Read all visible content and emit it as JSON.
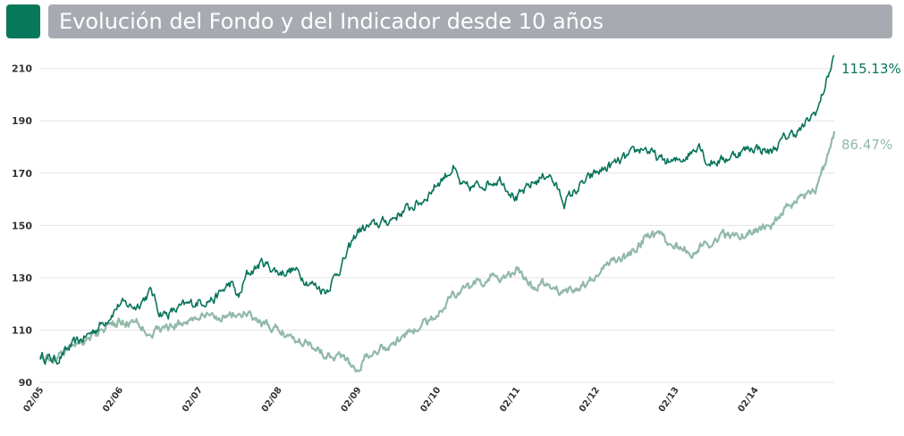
{
  "header": {
    "title": "Evolución del Fondo y del Indicador desde 10 años"
  },
  "colors": {
    "accent": "#07785a",
    "header_bar": "#a7abb1",
    "fund": "#07735a",
    "index": "#91b9a8",
    "grid": "#e4e4e4"
  },
  "chart_data": {
    "type": "line",
    "title": "Evolución del Fondo y del Indicador desde 10 años",
    "xlabel": "",
    "ylabel": "",
    "ylim": [
      90,
      215
    ],
    "y_ticks": [
      90,
      110,
      130,
      150,
      170,
      190,
      210
    ],
    "x_ticks": [
      "02/05",
      "02/06",
      "02/07",
      "02/08",
      "02/09",
      "02/10",
      "02/11",
      "02/12",
      "02/13",
      "02/14"
    ],
    "grid": true,
    "x_range": [
      2005.0,
      2015.0
    ],
    "series": [
      {
        "key": "fund",
        "end_label": "115.13%",
        "x": [
          2005.0,
          2005.2,
          2005.4,
          2005.6,
          2005.8,
          2006.0,
          2006.2,
          2006.4,
          2006.5,
          2006.6,
          2006.8,
          2007.0,
          2007.2,
          2007.4,
          2007.5,
          2007.6,
          2007.8,
          2008.0,
          2008.2,
          2008.4,
          2008.6,
          2008.8,
          2009.0,
          2009.2,
          2009.4,
          2009.6,
          2009.8,
          2010.0,
          2010.2,
          2010.3,
          2010.4,
          2010.6,
          2010.8,
          2011.0,
          2011.2,
          2011.4,
          2011.6,
          2011.8,
          2012.0,
          2012.2,
          2012.4,
          2012.6,
          2012.8,
          2013.0,
          2013.2,
          2013.3,
          2013.4,
          2013.6,
          2013.8,
          2014.0,
          2014.2,
          2014.4,
          2014.6,
          2014.8,
          2014.9,
          2015.0
        ],
        "y": [
          100,
          98.5,
          104,
          108,
          113,
          120,
          119,
          125,
          117,
          116,
          119,
          121,
          122,
          128,
          122,
          131,
          136,
          132,
          133,
          128,
          125,
          135,
          148,
          150,
          152,
          156,
          159,
          166,
          172,
          165,
          164,
          166,
          168,
          160,
          166,
          170,
          159,
          165,
          170,
          173,
          176,
          180,
          175,
          174,
          178,
          182,
          174,
          175,
          178,
          180,
          178,
          184,
          187,
          195,
          205,
          215
        ]
      },
      {
        "key": "index",
        "end_label": "86.47%",
        "x": [
          2005.0,
          2005.2,
          2005.4,
          2005.6,
          2005.8,
          2006.0,
          2006.2,
          2006.4,
          2006.6,
          2006.8,
          2007.0,
          2007.2,
          2007.4,
          2007.6,
          2007.8,
          2008.0,
          2008.2,
          2008.4,
          2008.6,
          2008.8,
          2009.0,
          2009.1,
          2009.2,
          2009.4,
          2009.6,
          2009.8,
          2010.0,
          2010.2,
          2010.4,
          2010.6,
          2010.8,
          2011.0,
          2011.2,
          2011.4,
          2011.6,
          2011.8,
          2012.0,
          2012.2,
          2012.4,
          2012.6,
          2012.8,
          2013.0,
          2013.2,
          2013.4,
          2013.6,
          2013.8,
          2014.0,
          2014.2,
          2014.4,
          2014.6,
          2014.8,
          2014.9,
          2015.0
        ],
        "y": [
          100,
          99,
          105,
          107,
          110,
          113,
          113,
          109,
          111,
          113,
          115,
          115,
          116,
          116,
          112,
          110,
          107,
          105,
          101,
          100,
          95,
          100,
          103,
          104,
          108,
          112,
          116,
          124,
          126,
          129,
          130,
          133,
          126,
          128,
          124,
          127,
          130,
          137,
          138,
          145,
          146,
          142,
          140,
          143,
          146,
          146,
          148,
          150,
          156,
          160,
          165,
          175,
          186
        ]
      }
    ]
  }
}
